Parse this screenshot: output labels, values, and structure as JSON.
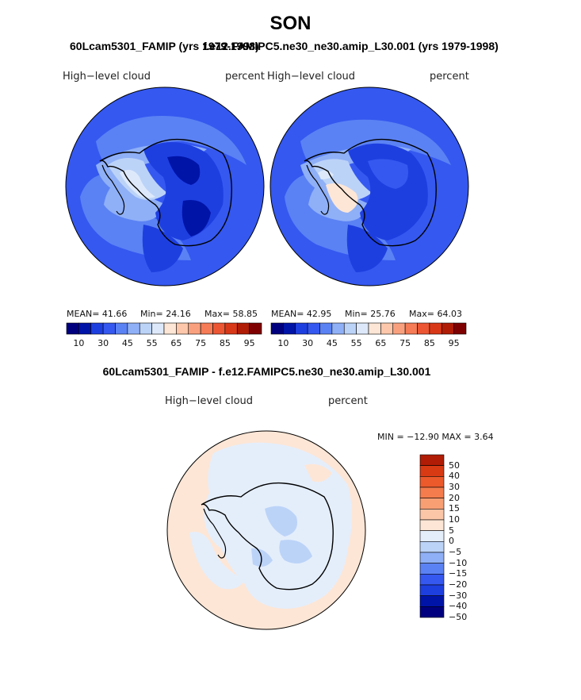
{
  "figure": {
    "title": "SON",
    "subtitle_left": "60Lcam5301_FAMIP (yrs 1979-1998)",
    "subtitle_right": "f.e12.FAMIPC5.ne30_ne30.amip_L30.001 (yrs 1979-1998)",
    "diff_title": "60Lcam5301_FAMIP - f.e12.FAMIPC5.ne30_ne30.amip_L30.001"
  },
  "panels": [
    {
      "left_label": "High−level cloud",
      "right_label": "percent",
      "mean_text": "MEAN=  41.66",
      "min_text": "Min=  24.16",
      "max_text": "Max=  58.85"
    },
    {
      "left_label": "High−level cloud",
      "right_label": "percent",
      "mean_text": "MEAN=  42.95",
      "min_text": "Min=  25.76",
      "max_text": "Max=  64.03"
    }
  ],
  "abs_colorbar": {
    "colors": [
      "#00007f",
      "#0014a8",
      "#1e3fe0",
      "#3558f0",
      "#5b82f4",
      "#8fb0f7",
      "#bcd3f8",
      "#dde9fb",
      "#fde6d6",
      "#fcc7aa",
      "#f9a17f",
      "#f57c56",
      "#ec5633",
      "#d93818",
      "#b01c05",
      "#7f0000"
    ],
    "tick_labels": [
      "10",
      "30",
      "45",
      "55",
      "65",
      "75",
      "85",
      "95"
    ]
  },
  "diff_panel": {
    "left_label": "High−level cloud",
    "right_label": "percent",
    "minmax_text": "MIN = −12.90 MAX =    3.64",
    "colorbar": {
      "colors": [
        "#b01c05",
        "#d83a14",
        "#ec5a2c",
        "#f57c4c",
        "#f89f74",
        "#fbc6a8",
        "#fde6d6",
        "#e4eefb",
        "#bcd3f8",
        "#8fb0f7",
        "#5b82f4",
        "#3558f0",
        "#1e3fe0",
        "#0014a8",
        "#00007f"
      ],
      "tick_labels": [
        "50",
        "40",
        "30",
        "20",
        "15",
        "10",
        "5",
        "0",
        "−5",
        "−10",
        "−15",
        "−20",
        "−30",
        "−40",
        "−50"
      ]
    }
  }
}
